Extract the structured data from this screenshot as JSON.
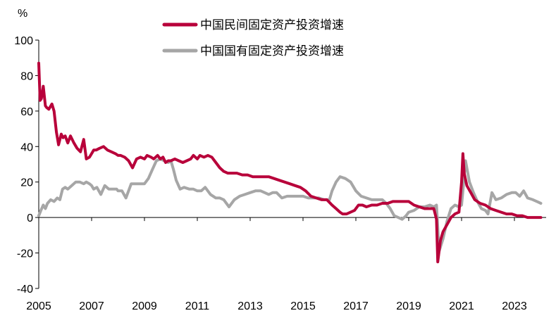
{
  "chart_data": {
    "type": "line",
    "y_unit_label": "%",
    "ylim": [
      -40,
      100
    ],
    "y_ticks": [
      "100",
      "80",
      "60",
      "40",
      "20",
      "0",
      "-20",
      "-40"
    ],
    "y_tick_values": [
      100,
      80,
      60,
      40,
      20,
      0,
      -20,
      -40
    ],
    "xlim": [
      2005,
      2024.2
    ],
    "x_ticks": [
      "2005",
      "2007",
      "2009",
      "2011",
      "2013",
      "2015",
      "2017",
      "2019",
      "2021",
      "2023"
    ],
    "x_tick_values": [
      2005,
      2007,
      2009,
      2011,
      2013,
      2015,
      2017,
      2019,
      2021,
      2023
    ],
    "grid": false,
    "legend_position": "top-center",
    "series": [
      {
        "name": "中国民间固定资产投资增速",
        "color": "#b8003a",
        "x": [
          2005.0,
          2005.05,
          2005.1,
          2005.17,
          2005.25,
          2005.3,
          2005.38,
          2005.5,
          2005.58,
          2005.67,
          2005.75,
          2005.85,
          2005.92,
          2006.0,
          2006.1,
          2006.2,
          2006.33,
          2006.45,
          2006.58,
          2006.7,
          2006.8,
          2006.92,
          2007.0,
          2007.08,
          2007.17,
          2007.3,
          2007.45,
          2007.6,
          2007.75,
          2007.9,
          2008.0,
          2008.1,
          2008.25,
          2008.4,
          2008.55,
          2008.7,
          2008.85,
          2009.0,
          2009.1,
          2009.25,
          2009.35,
          2009.5,
          2009.6,
          2009.7,
          2009.8,
          2009.9,
          2010.0,
          2010.15,
          2010.3,
          2010.45,
          2010.6,
          2010.75,
          2010.85,
          2011.0,
          2011.1,
          2011.25,
          2011.4,
          2011.55,
          2011.7,
          2011.85,
          2012.0,
          2012.15,
          2012.3,
          2012.5,
          2012.7,
          2012.9,
          2013.1,
          2013.3,
          2013.5,
          2013.7,
          2013.9,
          2014.1,
          2014.3,
          2014.5,
          2014.7,
          2014.9,
          2015.1,
          2015.3,
          2015.5,
          2015.7,
          2015.9,
          2016.1,
          2016.25,
          2016.4,
          2016.5,
          2016.65,
          2016.8,
          2016.95,
          2017.1,
          2017.25,
          2017.4,
          2017.6,
          2017.8,
          2018.0,
          2018.2,
          2018.4,
          2018.6,
          2018.8,
          2019.0,
          2019.2,
          2019.4,
          2019.6,
          2019.8,
          2019.95,
          2020.05,
          2020.1,
          2020.2,
          2020.3,
          2020.45,
          2020.6,
          2020.75,
          2020.9,
          2021.0,
          2021.05,
          2021.1,
          2021.2,
          2021.35,
          2021.5,
          2021.7,
          2021.9,
          2022.1,
          2022.3,
          2022.5,
          2022.7,
          2022.9,
          2023.1,
          2023.3,
          2023.5,
          2023.7,
          2023.85,
          2024.0
        ],
        "y": [
          87,
          66,
          67,
          74,
          63,
          62,
          61,
          64,
          60,
          48,
          41,
          47,
          45,
          46,
          42,
          46,
          42,
          39,
          37,
          44,
          33,
          34,
          36,
          38,
          38,
          39,
          40,
          38,
          37,
          36,
          35,
          35,
          34,
          32,
          28,
          33,
          34,
          33,
          35,
          34,
          33,
          35,
          33,
          34,
          31,
          32,
          32,
          33,
          32,
          31,
          32,
          33,
          35,
          33,
          35,
          34,
          35,
          34,
          31,
          28,
          26,
          25,
          25,
          25,
          24,
          24,
          23,
          23,
          23,
          23,
          22,
          21,
          20,
          19,
          18,
          17,
          15,
          12,
          11,
          10,
          10,
          7,
          5,
          3,
          2,
          2,
          3,
          4,
          7,
          7,
          6,
          7,
          7,
          8,
          8,
          9,
          9,
          9,
          9,
          7,
          6,
          5,
          5,
          5,
          -1,
          -25,
          -13,
          -8,
          -4,
          0,
          2,
          3,
          20,
          36,
          25,
          18,
          14,
          10,
          8,
          7,
          5,
          4,
          3,
          2,
          2,
          1,
          1,
          0,
          0,
          0,
          0
        ]
      },
      {
        "name": "中国国有固定资产投资增速",
        "color": "#a6a6a6",
        "x": [
          2005.0,
          2005.08,
          2005.17,
          2005.25,
          2005.33,
          2005.45,
          2005.58,
          2005.7,
          2005.8,
          2005.9,
          2006.0,
          2006.1,
          2006.25,
          2006.4,
          2006.55,
          2006.7,
          2006.8,
          2006.92,
          2007.0,
          2007.08,
          2007.2,
          2007.35,
          2007.5,
          2007.65,
          2007.8,
          2007.95,
          2008.0,
          2008.15,
          2008.3,
          2008.5,
          2008.7,
          2008.9,
          2009.0,
          2009.15,
          2009.3,
          2009.45,
          2009.6,
          2009.75,
          2009.9,
          2010.0,
          2010.1,
          2010.2,
          2010.35,
          2010.5,
          2010.7,
          2010.85,
          2011.0,
          2011.15,
          2011.3,
          2011.5,
          2011.7,
          2011.85,
          2012.0,
          2012.2,
          2012.4,
          2012.6,
          2012.8,
          2013.0,
          2013.2,
          2013.4,
          2013.55,
          2013.7,
          2013.85,
          2014.0,
          2014.2,
          2014.4,
          2014.6,
          2014.8,
          2015.0,
          2015.2,
          2015.4,
          2015.6,
          2015.8,
          2016.0,
          2016.1,
          2016.25,
          2016.4,
          2016.6,
          2016.8,
          2017.0,
          2017.2,
          2017.4,
          2017.6,
          2017.8,
          2018.0,
          2018.15,
          2018.3,
          2018.45,
          2018.6,
          2018.75,
          2018.9,
          2019.0,
          2019.2,
          2019.4,
          2019.6,
          2019.8,
          2019.95,
          2020.05,
          2020.15,
          2020.3,
          2020.45,
          2020.6,
          2020.75,
          2020.9,
          2021.0,
          2021.05,
          2021.15,
          2021.3,
          2021.45,
          2021.6,
          2021.75,
          2021.9,
          2022.0,
          2022.15,
          2022.3,
          2022.5,
          2022.7,
          2022.9,
          2023.05,
          2023.2,
          2023.35,
          2023.5,
          2023.7,
          2023.85,
          2024.0
        ],
        "y": [
          1,
          4,
          7,
          5,
          8,
          10,
          9,
          11,
          10,
          16,
          17,
          16,
          18,
          20,
          20,
          19,
          20,
          19,
          18,
          16,
          17,
          13,
          18,
          16,
          16,
          16,
          15,
          15,
          11,
          19,
          19,
          19,
          19,
          22,
          27,
          32,
          33,
          32,
          31,
          32,
          27,
          21,
          16,
          17,
          16,
          16,
          15,
          15,
          17,
          13,
          11,
          11,
          10,
          6,
          10,
          12,
          13,
          14,
          15,
          15,
          14,
          13,
          14,
          14,
          11,
          12,
          12,
          12,
          12,
          11,
          11,
          11,
          10,
          10,
          15,
          20,
          23,
          22,
          20,
          15,
          12,
          11,
          10,
          10,
          10,
          8,
          5,
          1,
          0,
          -1,
          1,
          3,
          4,
          6,
          6,
          7,
          6,
          7,
          -19,
          -12,
          -2,
          5,
          7,
          6,
          7,
          15,
          32,
          20,
          14,
          9,
          5,
          4,
          2,
          14,
          10,
          11,
          13,
          14,
          14,
          12,
          15,
          11,
          10,
          9,
          8
        ]
      }
    ]
  }
}
